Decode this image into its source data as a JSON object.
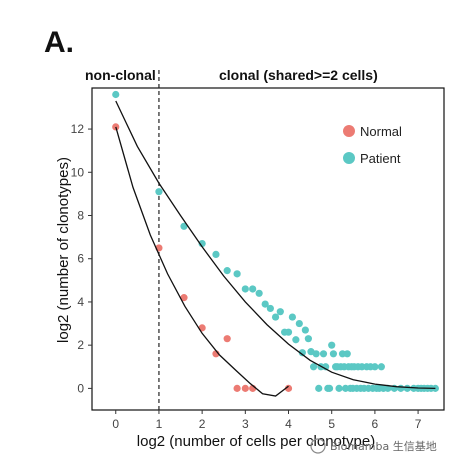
{
  "panel_label": "A.",
  "watermark": "Biomamba 生信基地",
  "chart_data": {
    "type": "scatter",
    "xlabel": "log2 (number of cells per clonotype)",
    "ylabel": "log2 (number of clonotypes)",
    "xlim": [
      -0.55,
      7.6
    ],
    "ylim": [
      -1.0,
      13.9
    ],
    "xticks": [
      0,
      1,
      2,
      3,
      4,
      5,
      6,
      7
    ],
    "yticks": [
      0,
      2,
      4,
      6,
      8,
      10,
      12
    ],
    "grid": false,
    "vline_x": 1,
    "region_labels": {
      "left": "non-clonal",
      "right": "clonal (shared>=2 cells)"
    },
    "legend_position": "top-right",
    "series": [
      {
        "name": "Normal",
        "color": "#ec7b73",
        "points": [
          [
            0,
            12.1
          ],
          [
            1,
            6.5
          ],
          [
            1.58,
            4.2
          ],
          [
            2,
            2.8
          ],
          [
            2.32,
            1.6
          ],
          [
            2.58,
            2.3
          ],
          [
            2.81,
            0
          ],
          [
            3,
            0
          ],
          [
            3.17,
            0
          ],
          [
            4,
            0
          ]
        ],
        "fit": [
          [
            0,
            12.1
          ],
          [
            0.4,
            9.3
          ],
          [
            0.8,
            7.1
          ],
          [
            1.2,
            5.3
          ],
          [
            1.6,
            3.8
          ],
          [
            2.0,
            2.55
          ],
          [
            2.4,
            1.55
          ],
          [
            2.8,
            0.8
          ],
          [
            3.1,
            0.25
          ],
          [
            3.4,
            -0.25
          ],
          [
            3.7,
            -0.35
          ],
          [
            3.9,
            -0.05
          ],
          [
            4.0,
            0.1
          ]
        ]
      },
      {
        "name": "Patient",
        "color": "#5bc8c4",
        "points": [
          [
            0,
            13.6
          ],
          [
            1,
            9.1
          ],
          [
            1.58,
            7.5
          ],
          [
            2,
            6.7
          ],
          [
            2.32,
            6.2
          ],
          [
            2.58,
            5.45
          ],
          [
            2.81,
            5.3
          ],
          [
            3,
            4.6
          ],
          [
            3.17,
            4.6
          ],
          [
            3.32,
            4.4
          ],
          [
            3.46,
            3.9
          ],
          [
            3.58,
            3.7
          ],
          [
            3.7,
            3.3
          ],
          [
            3.81,
            3.55
          ],
          [
            3.91,
            2.6
          ],
          [
            4,
            2.6
          ],
          [
            4.09,
            3.3
          ],
          [
            4.17,
            2.25
          ],
          [
            4.25,
            3.0
          ],
          [
            4.32,
            1.65
          ],
          [
            4.39,
            2.7
          ],
          [
            4.46,
            2.3
          ],
          [
            4.52,
            1.7
          ],
          [
            4.58,
            1.0
          ],
          [
            4.64,
            1.6
          ],
          [
            4.7,
            0
          ],
          [
            4.75,
            1.0
          ],
          [
            4.81,
            1.6
          ],
          [
            4.86,
            1.0
          ],
          [
            4.91,
            0
          ],
          [
            4.95,
            0
          ],
          [
            5.0,
            2.0
          ],
          [
            5.04,
            1.6
          ],
          [
            5.09,
            1.0
          ],
          [
            5.13,
            1.0
          ],
          [
            5.17,
            0
          ],
          [
            5.21,
            1.0
          ],
          [
            5.25,
            1.6
          ],
          [
            5.29,
            1.0
          ],
          [
            5.32,
            0
          ],
          [
            5.36,
            1.6
          ],
          [
            5.39,
            1.0
          ],
          [
            5.43,
            0
          ],
          [
            5.46,
            1.0
          ],
          [
            5.49,
            0
          ],
          [
            5.52,
            1.0
          ],
          [
            5.58,
            0
          ],
          [
            5.61,
            1.0
          ],
          [
            5.67,
            0
          ],
          [
            5.7,
            1.0
          ],
          [
            5.75,
            0
          ],
          [
            5.81,
            1.0
          ],
          [
            5.85,
            0
          ],
          [
            5.9,
            1.0
          ],
          [
            5.95,
            0
          ],
          [
            6.0,
            1.0
          ],
          [
            6.04,
            0
          ],
          [
            6.1,
            0
          ],
          [
            6.15,
            1.0
          ],
          [
            6.2,
            0
          ],
          [
            6.3,
            0
          ],
          [
            6.45,
            0
          ],
          [
            6.6,
            0
          ],
          [
            6.75,
            0
          ],
          [
            6.9,
            0
          ],
          [
            7.0,
            0
          ],
          [
            7.07,
            0
          ],
          [
            7.14,
            0
          ],
          [
            7.22,
            0
          ],
          [
            7.3,
            0
          ],
          [
            7.4,
            0
          ]
        ],
        "fit": [
          [
            0,
            13.3
          ],
          [
            0.5,
            11.2
          ],
          [
            1.0,
            9.5
          ],
          [
            1.5,
            8.0
          ],
          [
            2.0,
            6.55
          ],
          [
            2.5,
            5.2
          ],
          [
            3.0,
            4.0
          ],
          [
            3.5,
            2.95
          ],
          [
            4.0,
            2.05
          ],
          [
            4.5,
            1.3
          ],
          [
            5.0,
            0.75
          ],
          [
            5.5,
            0.4
          ],
          [
            6.0,
            0.2
          ],
          [
            6.5,
            0.08
          ],
          [
            7.0,
            0.02
          ],
          [
            7.4,
            0.0
          ]
        ]
      }
    ]
  }
}
